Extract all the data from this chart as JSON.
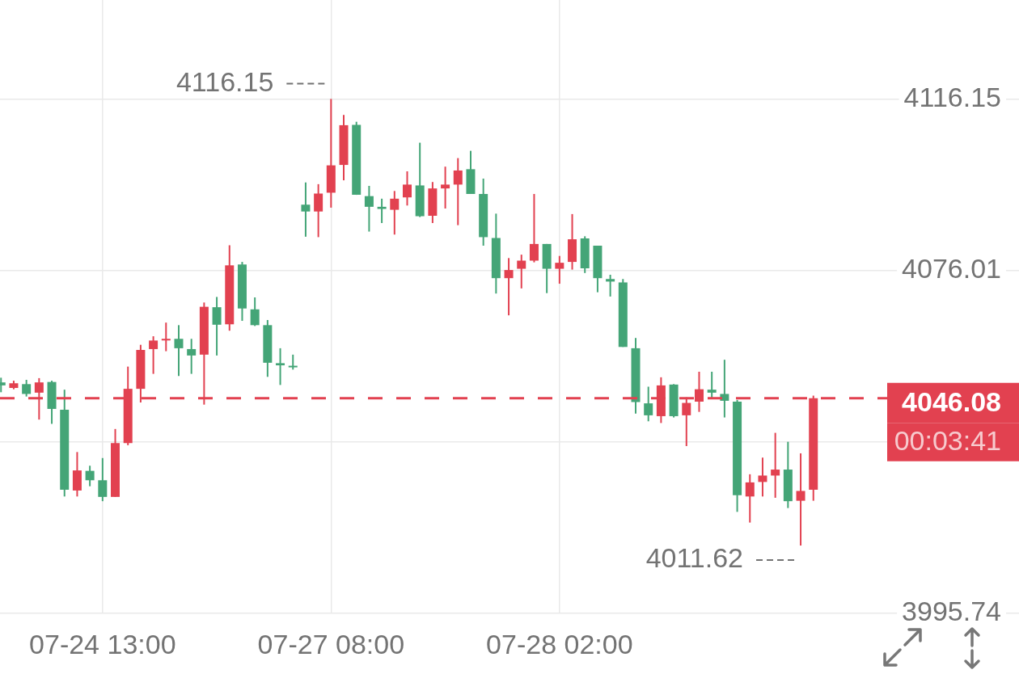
{
  "chart_data": {
    "type": "candlestick",
    "categories": [
      null,
      null,
      null,
      null,
      null,
      null,
      null,
      null,
      "07-24 13:00",
      null,
      null,
      null,
      null,
      null,
      null,
      null,
      null,
      null,
      null,
      null,
      null,
      null,
      null,
      null,
      null,
      null,
      "07-27 08:00",
      null,
      null,
      null,
      null,
      null,
      null,
      null,
      null,
      null,
      null,
      null,
      null,
      null,
      null,
      null,
      null,
      null,
      "07-28 02:00",
      null,
      null,
      null,
      null,
      null,
      null,
      null,
      null,
      null,
      null,
      null,
      null,
      null,
      null,
      null,
      null,
      null,
      null,
      null,
      null
    ],
    "ohlc": [
      [
        4049.8,
        4050.9,
        4047.5,
        4049.1
      ],
      [
        4048.5,
        4050.2,
        4048.2,
        4049.6
      ],
      [
        4049.4,
        4050.4,
        4046.5,
        4047.1
      ],
      [
        4047.4,
        4050.8,
        4041.1,
        4049.8
      ],
      [
        4049.9,
        4050.2,
        4040.1,
        4043.6
      ],
      [
        4043.4,
        4048.1,
        4023.1,
        4024.7
      ],
      [
        4024.5,
        4033.5,
        4023.1,
        4029.2
      ],
      [
        4029.1,
        4030.3,
        4025.5,
        4026.9
      ],
      [
        4026.9,
        4032.1,
        4022.0,
        4023.0
      ],
      [
        4023.0,
        4038.9,
        4023.0,
        4035.6
      ],
      [
        4035.6,
        4053.5,
        4035.1,
        4048.3
      ],
      [
        4048.3,
        4058.6,
        4045.1,
        4057.4
      ],
      [
        4057.6,
        4060.6,
        4051.8,
        4059.6
      ],
      [
        4059.7,
        4063.8,
        4057.1,
        4060.0
      ],
      [
        4060.0,
        4063.2,
        4051.3,
        4057.8
      ],
      [
        4057.6,
        4060.0,
        4051.8,
        4056.1
      ],
      [
        4056.3,
        4068.5,
        4044.6,
        4067.5
      ],
      [
        4067.4,
        4069.8,
        4056.1,
        4063.3
      ],
      [
        4063.4,
        4081.9,
        4061.9,
        4077.2
      ],
      [
        4077.4,
        4078.0,
        4064.2,
        4067.1
      ],
      [
        4066.9,
        4069.7,
        4063.0,
        4063.2
      ],
      [
        4063.2,
        4064.4,
        4051.1,
        4054.4
      ],
      [
        4054.3,
        4057.8,
        4049.2,
        4053.8
      ],
      [
        4053.7,
        4056.3,
        4052.8,
        4053.6
      ],
      [
        4091.4,
        4096.6,
        4083.9,
        4089.8
      ],
      [
        4089.8,
        4096.2,
        4083.8,
        4094.0
      ],
      [
        4094.2,
        4116.15,
        4090.7,
        4100.6
      ],
      [
        4100.7,
        4112.4,
        4097.1,
        4110.0
      ],
      [
        4110.1,
        4110.8,
        4093.7,
        4093.7
      ],
      [
        4093.4,
        4095.8,
        4085.1,
        4090.9
      ],
      [
        4090.9,
        4092.8,
        4087.1,
        4090.4
      ],
      [
        4090.2,
        4094.6,
        4084.4,
        4092.8
      ],
      [
        4093.1,
        4099.2,
        4091.2,
        4096.1
      ],
      [
        4095.9,
        4105.9,
        4088.5,
        4088.7
      ],
      [
        4088.8,
        4096.7,
        4087.1,
        4095.2
      ],
      [
        4095.2,
        4100.3,
        4090.5,
        4096.1
      ],
      [
        4096.1,
        4102.3,
        4086.6,
        4099.4
      ],
      [
        4099.7,
        4104.0,
        4093.9,
        4093.9
      ],
      [
        4093.9,
        4097.5,
        4081.8,
        4083.8
      ],
      [
        4083.6,
        4089.3,
        4070.6,
        4074.2
      ],
      [
        4074.2,
        4078.9,
        4065.5,
        4076.1
      ],
      [
        4076.4,
        4079.7,
        4071.8,
        4078.3
      ],
      [
        4078.3,
        4093.9,
        4077.9,
        4082.2
      ],
      [
        4082.2,
        4082.2,
        4070.7,
        4076.4
      ],
      [
        4076.4,
        4079.4,
        4072.9,
        4077.8
      ],
      [
        4078.0,
        4089.2,
        4076.2,
        4083.3
      ],
      [
        4083.5,
        4084.0,
        4075.4,
        4076.5
      ],
      [
        4081.8,
        4081.8,
        4070.9,
        4074.2
      ],
      [
        4074.0,
        4075.0,
        4069.9,
        4073.4
      ],
      [
        4073.2,
        4074.0,
        4058.1,
        4058.1
      ],
      [
        4057.8,
        4060.2,
        4042.5,
        4045.2
      ],
      [
        4044.9,
        4048.8,
        4040.7,
        4042.1
      ],
      [
        4041.9,
        4051.0,
        4040.3,
        4049.1
      ],
      [
        4049.3,
        4049.4,
        4041.6,
        4041.9
      ],
      [
        4042.1,
        4046.3,
        4034.9,
        4045.0
      ],
      [
        4045.3,
        4052.3,
        4042.9,
        4048.2
      ],
      [
        4048.1,
        4052.3,
        4046.1,
        4047.4
      ],
      [
        4047.1,
        4055.1,
        4041.6,
        4045.5
      ],
      [
        4045.3,
        4045.7,
        4019.5,
        4023.4
      ],
      [
        4023.1,
        4028.3,
        4017.0,
        4026.4
      ],
      [
        4026.5,
        4032.2,
        4023.1,
        4028.0
      ],
      [
        4028.0,
        4038.0,
        4022.8,
        4029.4
      ],
      [
        4029.4,
        4035.9,
        4020.4,
        4022.0
      ],
      [
        4022.1,
        4033.2,
        4011.62,
        4024.4
      ],
      [
        4024.7,
        4046.7,
        4022.1,
        4046.08
      ]
    ],
    "colors": [
      "#44a577",
      "#e24150",
      "#44a577",
      "#e24150",
      "#44a577",
      "#44a577",
      "#e24150",
      "#44a577",
      "#44a577",
      "#e24150",
      "#e24150",
      "#e24150",
      "#e24150",
      "#e24150",
      "#44a577",
      "#44a577",
      "#e24150",
      "#44a577",
      "#e24150",
      "#44a577",
      "#44a577",
      "#44a577",
      "#44a577",
      "#44a577",
      "#44a577",
      "#e24150",
      "#e24150",
      "#e24150",
      "#44a577",
      "#44a577",
      "#44a577",
      "#e24150",
      "#e24150",
      "#44a577",
      "#e24150",
      "#e24150",
      "#e24150",
      "#44a577",
      "#44a577",
      "#44a577",
      "#e24150",
      "#e24150",
      "#e24150",
      "#44a577",
      "#e24150",
      "#e24150",
      "#44a577",
      "#44a577",
      "#44a577",
      "#44a577",
      "#44a577",
      "#44a577",
      "#e24150",
      "#44a577",
      "#e24150",
      "#e24150",
      "#44a577",
      "#44a577",
      "#44a577",
      "#e24150",
      "#e24150",
      "#e24150",
      "#44a577",
      "#e24150",
      "#e24150"
    ],
    "ylim": [
      3995.74,
      4139.3
    ],
    "yticks": [
      4116.15,
      4076.01,
      {
        "value": 4035.87,
        "label": null
      },
      3995.74
    ],
    "grid": true,
    "ref_lines": [
      {
        "axis": "y",
        "value": 4046.08,
        "label": "4046.08",
        "color": "#e24150",
        "line_style": "dashed"
      }
    ],
    "annotations": [
      "4116.15",
      "4011.62",
      "00:03:41"
    ]
  }
}
